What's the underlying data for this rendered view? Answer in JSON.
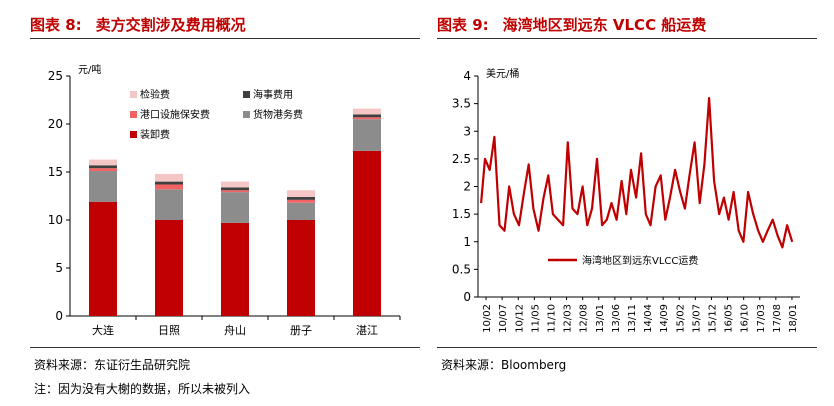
{
  "left": {
    "fig_label": "图表 8:",
    "fig_title": "卖方交割涉及费用概况",
    "source": "资料来源：东证衍生品研究院",
    "note": "注：因为没有大榭的数据，所以未被列入",
    "chart_data": {
      "type": "bar",
      "stacked": true,
      "unit": "元/吨",
      "categories": [
        "大连",
        "日照",
        "舟山",
        "册子",
        "湛江"
      ],
      "ylim": [
        0,
        25
      ],
      "yticks": [
        0,
        5,
        10,
        15,
        20,
        25
      ],
      "grid": false,
      "legend_position": "top-left",
      "series": [
        {
          "name": "装卸费",
          "color": "#c00000",
          "values": [
            11.9,
            10.0,
            9.7,
            10.0,
            17.2
          ]
        },
        {
          "name": "货物港务费",
          "color": "#8c8c8c",
          "values": [
            3.2,
            3.2,
            3.2,
            1.8,
            3.3
          ]
        },
        {
          "name": "港口设施保安费",
          "color": "#f26464",
          "values": [
            0.3,
            0.5,
            0.2,
            0.3,
            0.2
          ]
        },
        {
          "name": "海事费用",
          "color": "#404040",
          "values": [
            0.3,
            0.3,
            0.3,
            0.3,
            0.3
          ]
        },
        {
          "name": "检验费",
          "color": "#f5c6c6",
          "values": [
            0.6,
            0.8,
            0.6,
            0.7,
            0.6
          ]
        }
      ],
      "legend_order": [
        "检验费",
        "海事费用",
        "港口设施保安费",
        "货物港务费",
        "装卸费"
      ]
    }
  },
  "right": {
    "fig_label": "图表 9:",
    "fig_title": "海湾地区到远东 VLCC 船运费",
    "source": "资料来源：Bloomberg",
    "chart_data": {
      "type": "line",
      "unit": "美元/桶",
      "ylim": [
        0,
        4
      ],
      "yticks": [
        0,
        0.5,
        1,
        1.5,
        2,
        2.5,
        3,
        3.5,
        4
      ],
      "grid": false,
      "legend_position": "center-right",
      "xticklabels": [
        "10/02",
        "10/07",
        "10/12",
        "11/05",
        "11/10",
        "12/03",
        "12/08",
        "13/01",
        "13/06",
        "13/11",
        "14/04",
        "14/09",
        "15/02",
        "15/07",
        "15/12",
        "16/05",
        "16/10",
        "17/03",
        "17/08",
        "18/01"
      ],
      "series": [
        {
          "name": "海湾地区到远东VLCC运费",
          "color": "#c00000",
          "x": [
            2010.08,
            2010.18,
            2010.3,
            2010.42,
            2010.55,
            2010.68,
            2010.8,
            2010.92,
            2011.05,
            2011.18,
            2011.3,
            2011.42,
            2011.55,
            2011.68,
            2011.8,
            2011.92,
            2012.05,
            2012.18,
            2012.3,
            2012.42,
            2012.55,
            2012.68,
            2012.8,
            2012.92,
            2013.05,
            2013.18,
            2013.3,
            2013.42,
            2013.55,
            2013.68,
            2013.8,
            2013.92,
            2014.05,
            2014.18,
            2014.3,
            2014.42,
            2014.55,
            2014.68,
            2014.8,
            2014.92,
            2015.05,
            2015.18,
            2015.3,
            2015.42,
            2015.55,
            2015.68,
            2015.8,
            2015.92,
            2016.05,
            2016.18,
            2016.3,
            2016.42,
            2016.55,
            2016.68,
            2016.8,
            2016.92,
            2017.05,
            2017.18,
            2017.3,
            2017.42,
            2017.55,
            2017.68,
            2017.8,
            2017.92,
            2018.05
          ],
          "y": [
            1.7,
            2.5,
            2.3,
            2.9,
            1.3,
            1.2,
            2.0,
            1.5,
            1.3,
            1.9,
            2.4,
            1.6,
            1.2,
            1.8,
            2.2,
            1.5,
            1.4,
            1.3,
            2.8,
            1.6,
            1.5,
            2.0,
            1.3,
            1.6,
            2.5,
            1.3,
            1.4,
            1.7,
            1.4,
            2.1,
            1.5,
            2.3,
            1.8,
            2.6,
            1.5,
            1.3,
            2.0,
            2.2,
            1.4,
            1.8,
            2.3,
            1.9,
            1.6,
            2.2,
            2.8,
            1.7,
            2.4,
            3.6,
            2.1,
            1.5,
            1.8,
            1.4,
            1.9,
            1.2,
            1.0,
            1.9,
            1.5,
            1.2,
            1.0,
            1.2,
            1.4,
            1.1,
            0.9,
            1.3,
            1.0
          ]
        }
      ]
    }
  }
}
